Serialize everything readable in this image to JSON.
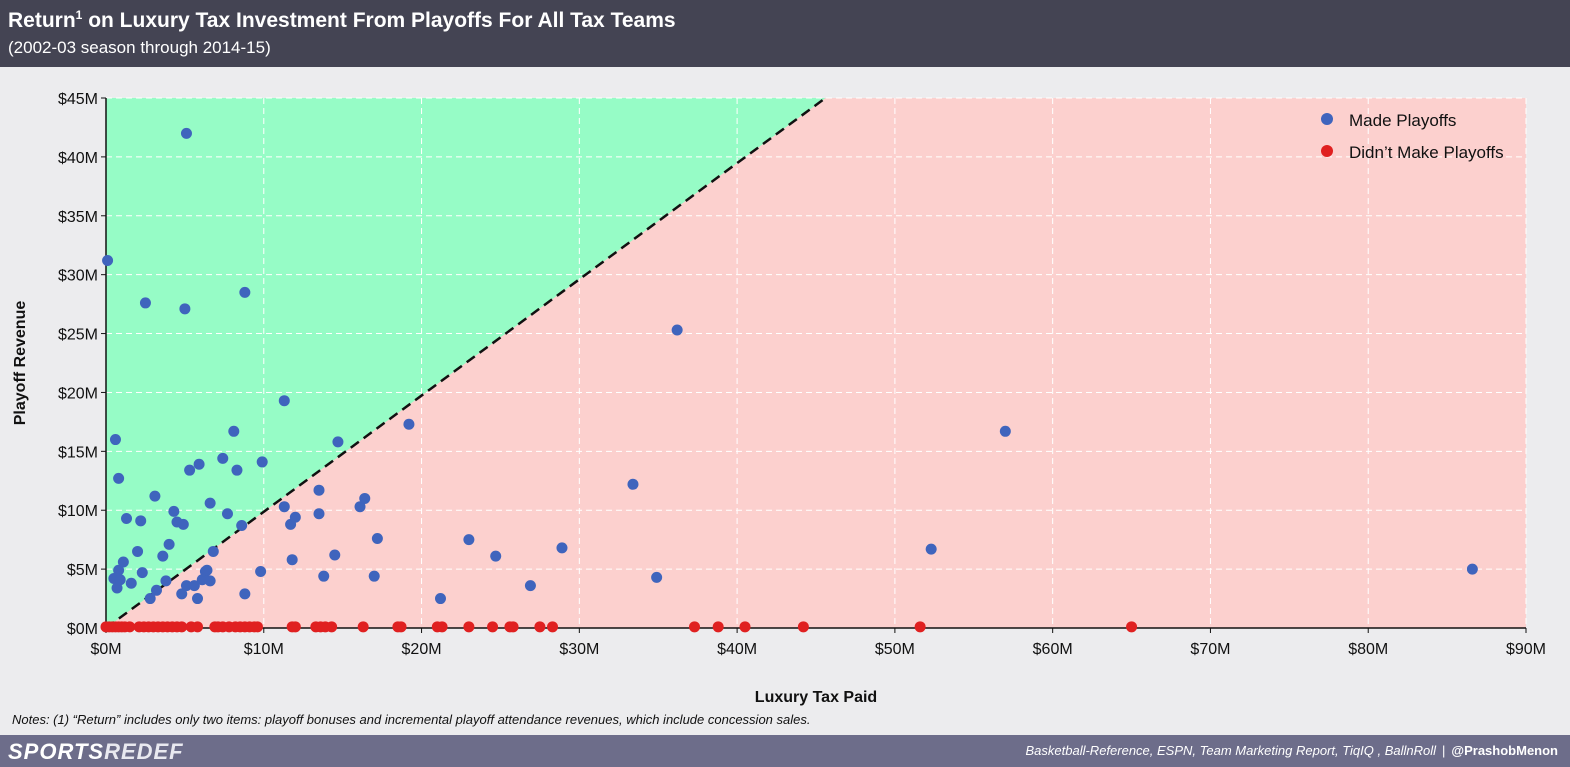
{
  "header": {
    "title_main": "Return",
    "title_sup": "1",
    "title_rest": " on Luxury Tax Investment From Playoffs For All Tax Teams",
    "subtitle": "(2002-03 season through 2014-15)"
  },
  "notes": "Notes: (1) “Return” includes only two items: playoff bonuses and incremental playoff attendance revenues, which include concession sales.",
  "footer": {
    "logo_part1": "SPORTS",
    "logo_part2": "REDEF",
    "sources": "Basketball-Reference, ESPN, Team Marketing Report, TiqIQ , BallnRoll",
    "separator": "|",
    "handle": "@PrashobMenon"
  },
  "colors": {
    "header_bg": "#444453",
    "footer_bg": "#6d6d8a",
    "above_line": "#96fcc6",
    "below_line": "#fcd0ce",
    "made_playoffs": "#3f64bd",
    "missed_playoffs": "#e02020"
  },
  "chart_data": {
    "type": "scatter",
    "xlabel": "Luxury Tax Paid",
    "ylabel": "Playoff Revenue",
    "xlim": [
      0,
      90
    ],
    "ylim": [
      0,
      45
    ],
    "unit": "$M",
    "x_ticks": [
      0,
      10,
      20,
      30,
      40,
      50,
      60,
      70,
      80,
      90
    ],
    "y_ticks": [
      0,
      5,
      10,
      15,
      20,
      25,
      30,
      35,
      40,
      45
    ],
    "x_tick_labels": [
      "$0M",
      "$10M",
      "$20M",
      "$30M",
      "$40M",
      "$50M",
      "$60M",
      "$70M",
      "$80M",
      "$90M"
    ],
    "y_tick_labels": [
      "$0M",
      "$5M",
      "$10M",
      "$15M",
      "$20M",
      "$25M",
      "$30M",
      "$35M",
      "$40M",
      "$45M"
    ],
    "grid": true,
    "legend_position": "top-right",
    "reference_line": {
      "style": "dashed",
      "from": [
        0,
        0
      ],
      "to": [
        45.6,
        45
      ]
    },
    "series": [
      {
        "name": "Made Playoffs",
        "points": [
          [
            0.1,
            31.2
          ],
          [
            0.5,
            4.2
          ],
          [
            0.6,
            16.0
          ],
          [
            0.7,
            3.4
          ],
          [
            0.8,
            4.9
          ],
          [
            0.8,
            12.7
          ],
          [
            0.9,
            4.1
          ],
          [
            1.1,
            5.6
          ],
          [
            1.3,
            9.3
          ],
          [
            1.6,
            3.8
          ],
          [
            2.0,
            6.5
          ],
          [
            2.2,
            9.1
          ],
          [
            2.3,
            4.7
          ],
          [
            2.5,
            27.6
          ],
          [
            2.8,
            2.5
          ],
          [
            3.1,
            11.2
          ],
          [
            3.2,
            3.2
          ],
          [
            3.6,
            6.1
          ],
          [
            3.8,
            4.0
          ],
          [
            4.0,
            7.1
          ],
          [
            4.3,
            9.9
          ],
          [
            4.5,
            9.0
          ],
          [
            4.8,
            2.9
          ],
          [
            4.9,
            8.8
          ],
          [
            5.0,
            27.1
          ],
          [
            5.1,
            3.6
          ],
          [
            5.1,
            42.0
          ],
          [
            5.3,
            13.4
          ],
          [
            5.6,
            3.6
          ],
          [
            5.8,
            2.5
          ],
          [
            5.9,
            13.9
          ],
          [
            6.1,
            4.1
          ],
          [
            6.3,
            4.8
          ],
          [
            6.4,
            4.9
          ],
          [
            6.6,
            4.0
          ],
          [
            6.6,
            10.6
          ],
          [
            6.8,
            6.5
          ],
          [
            7.4,
            14.4
          ],
          [
            7.7,
            9.7
          ],
          [
            8.1,
            16.7
          ],
          [
            8.3,
            13.4
          ],
          [
            8.6,
            8.7
          ],
          [
            8.8,
            28.5
          ],
          [
            8.8,
            2.9
          ],
          [
            9.8,
            4.8
          ],
          [
            9.9,
            14.1
          ],
          [
            11.3,
            10.3
          ],
          [
            11.3,
            19.3
          ],
          [
            11.7,
            8.8
          ],
          [
            11.8,
            5.8
          ],
          [
            12.0,
            9.4
          ],
          [
            13.5,
            11.7
          ],
          [
            13.5,
            9.7
          ],
          [
            13.8,
            4.4
          ],
          [
            14.5,
            6.2
          ],
          [
            14.7,
            15.8
          ],
          [
            16.1,
            10.3
          ],
          [
            16.4,
            11.0
          ],
          [
            17.0,
            4.4
          ],
          [
            17.2,
            7.6
          ],
          [
            19.2,
            17.3
          ],
          [
            21.2,
            2.5
          ],
          [
            23.0,
            7.5
          ],
          [
            24.7,
            6.1
          ],
          [
            26.9,
            3.6
          ],
          [
            28.9,
            6.8
          ],
          [
            33.4,
            12.2
          ],
          [
            34.9,
            4.3
          ],
          [
            36.2,
            25.3
          ],
          [
            52.3,
            6.7
          ],
          [
            57.0,
            16.7
          ],
          [
            86.6,
            5.0
          ]
        ]
      },
      {
        "name": "Didn’t Make Playoffs",
        "points": [
          [
            0.0,
            0.1
          ],
          [
            0.2,
            0.1
          ],
          [
            0.4,
            0.1
          ],
          [
            0.6,
            0.1
          ],
          [
            0.8,
            0.1
          ],
          [
            1.0,
            0.1
          ],
          [
            1.2,
            0.1
          ],
          [
            1.5,
            0.1
          ],
          [
            2.1,
            0.1
          ],
          [
            2.4,
            0.1
          ],
          [
            2.7,
            0.1
          ],
          [
            3.0,
            0.1
          ],
          [
            3.3,
            0.1
          ],
          [
            3.6,
            0.1
          ],
          [
            3.9,
            0.1
          ],
          [
            4.2,
            0.1
          ],
          [
            4.5,
            0.1
          ],
          [
            4.8,
            0.1
          ],
          [
            5.4,
            0.1
          ],
          [
            5.8,
            0.1
          ],
          [
            6.9,
            0.1
          ],
          [
            7.1,
            0.1
          ],
          [
            7.4,
            0.1
          ],
          [
            7.8,
            0.1
          ],
          [
            8.2,
            0.1
          ],
          [
            8.5,
            0.1
          ],
          [
            8.8,
            0.1
          ],
          [
            9.1,
            0.1
          ],
          [
            9.4,
            0.1
          ],
          [
            9.6,
            0.1
          ],
          [
            11.8,
            0.1
          ],
          [
            12.0,
            0.1
          ],
          [
            13.3,
            0.1
          ],
          [
            13.6,
            0.1
          ],
          [
            13.9,
            0.1
          ],
          [
            14.3,
            0.1
          ],
          [
            16.3,
            0.1
          ],
          [
            18.5,
            0.1
          ],
          [
            18.7,
            0.1
          ],
          [
            21.0,
            0.1
          ],
          [
            21.3,
            0.1
          ],
          [
            23.0,
            0.1
          ],
          [
            24.5,
            0.1
          ],
          [
            25.6,
            0.1
          ],
          [
            25.8,
            0.1
          ],
          [
            27.5,
            0.1
          ],
          [
            28.3,
            0.1
          ],
          [
            37.3,
            0.1
          ],
          [
            38.8,
            0.1
          ],
          [
            40.5,
            0.1
          ],
          [
            44.2,
            0.1
          ],
          [
            51.6,
            0.1
          ],
          [
            65.0,
            0.1
          ]
        ]
      }
    ]
  }
}
